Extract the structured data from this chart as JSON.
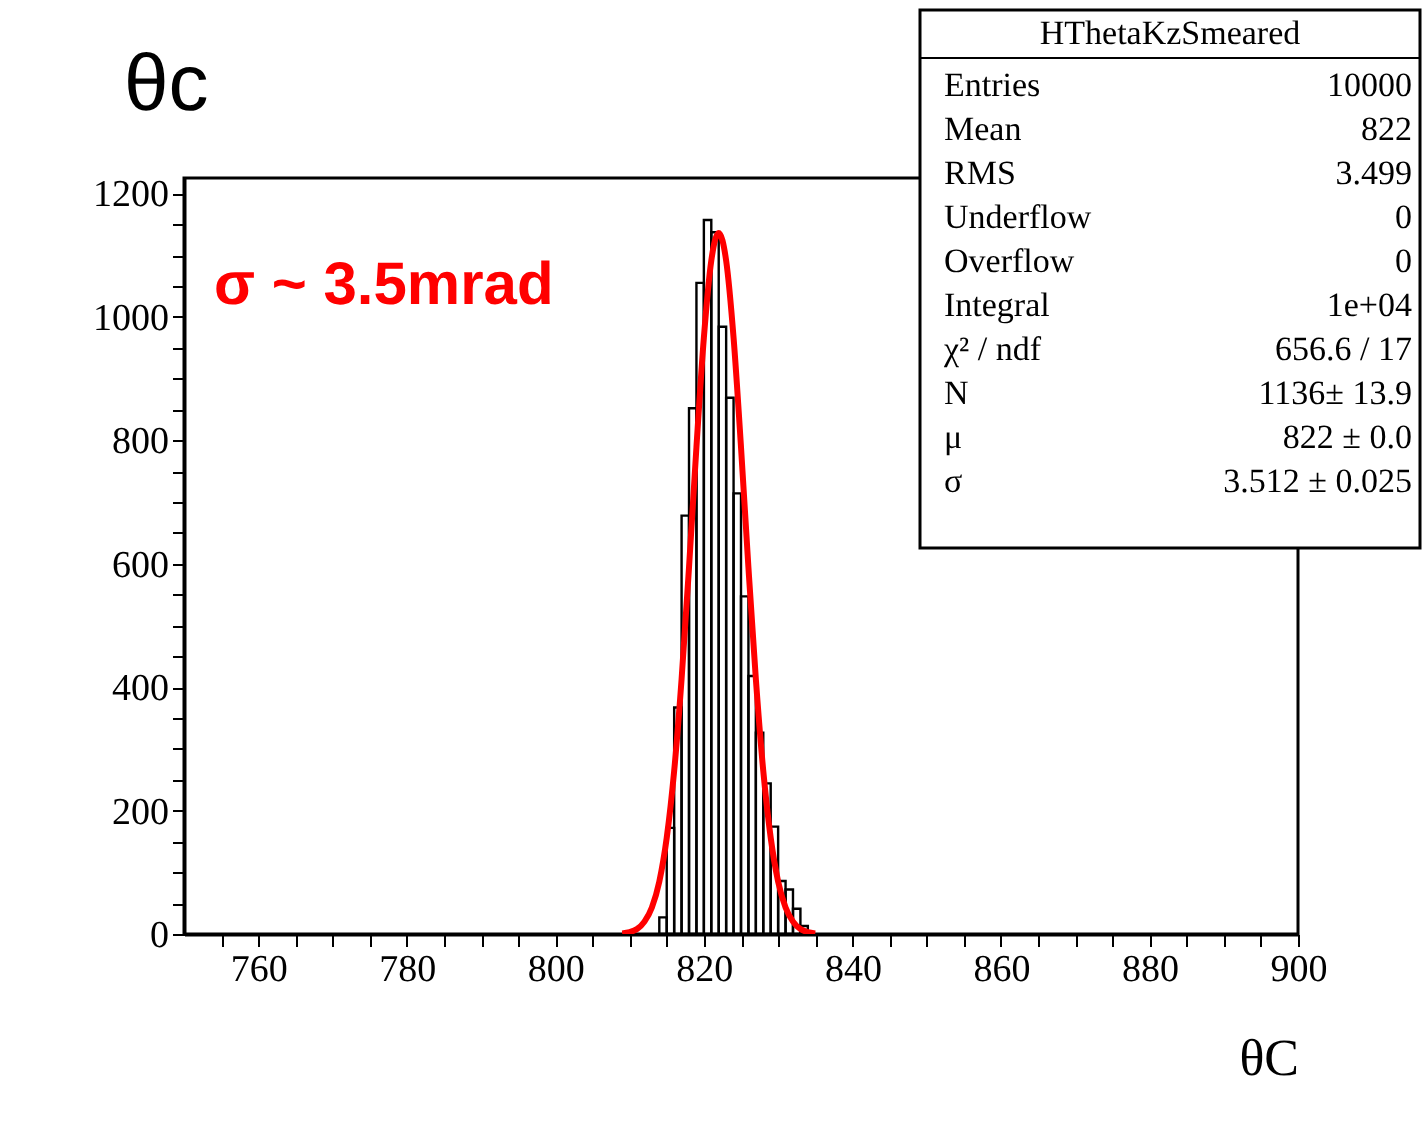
{
  "chart_data": {
    "type": "histogram",
    "title": "θc",
    "xlabel": "θC",
    "bins": [
      814,
      815,
      816,
      817,
      818,
      819,
      820,
      821,
      822,
      823,
      824,
      825,
      826,
      827,
      828,
      829,
      830,
      831,
      832,
      833,
      834
    ],
    "series": [
      {
        "color": "#000000",
        "values": [
          27,
          172,
          367,
          678,
          852,
          1055,
          1157,
          1137,
          984,
          869,
          714,
          547,
          418,
          326,
          244,
          174,
          86,
          72,
          41,
          13
        ]
      },
      {
        "type": "line",
        "color": "#ff0000",
        "x": [
          809,
          810,
          811,
          812,
          813,
          814,
          815,
          816,
          817,
          818,
          819,
          820,
          821,
          822,
          823,
          824,
          825,
          826,
          827,
          828,
          829,
          830,
          831,
          832,
          833,
          834,
          835
        ],
        "values": [
          1,
          3,
          8,
          20,
          43,
          85,
          156,
          264,
          413,
          594,
          789,
          966,
          1091,
          1136,
          1091,
          966,
          789,
          594,
          413,
          264,
          156,
          85,
          43,
          20,
          8,
          3,
          1
        ]
      }
    ],
    "xlim": [
      750,
      900
    ],
    "xticks": [
      {
        "value": 755,
        "label": null
      },
      760,
      {
        "value": 765,
        "label": null
      },
      {
        "value": 770,
        "label": null
      },
      {
        "value": 775,
        "label": null
      },
      780,
      {
        "value": 785,
        "label": null
      },
      {
        "value": 790,
        "label": null
      },
      {
        "value": 795,
        "label": null
      },
      800,
      {
        "value": 805,
        "label": null
      },
      {
        "value": 810,
        "label": null
      },
      {
        "value": 815,
        "label": null
      },
      820,
      {
        "value": 825,
        "label": null
      },
      {
        "value": 830,
        "label": null
      },
      {
        "value": 835,
        "label": null
      },
      840,
      {
        "value": 845,
        "label": null
      },
      {
        "value": 850,
        "label": null
      },
      {
        "value": 855,
        "label": null
      },
      860,
      {
        "value": 865,
        "label": null
      },
      {
        "value": 870,
        "label": null
      },
      {
        "value": 875,
        "label": null
      },
      880,
      {
        "value": 885,
        "label": null
      },
      {
        "value": 890,
        "label": null
      },
      {
        "value": 895,
        "label": null
      },
      900
    ],
    "ylim": [
      0,
      1225
    ],
    "yticks": [
      0,
      {
        "value": 50,
        "label": null
      },
      {
        "value": 100,
        "label": null
      },
      {
        "value": 150,
        "label": null
      },
      200,
      {
        "value": 250,
        "label": null
      },
      {
        "value": 300,
        "label": null
      },
      {
        "value": 350,
        "label": null
      },
      400,
      {
        "value": 450,
        "label": null
      },
      {
        "value": 500,
        "label": null
      },
      {
        "value": 550,
        "label": null
      },
      600,
      {
        "value": 650,
        "label": null
      },
      {
        "value": 700,
        "label": null
      },
      {
        "value": 750,
        "label": null
      },
      800,
      {
        "value": 850,
        "label": null
      },
      {
        "value": 900,
        "label": null
      },
      {
        "value": 950,
        "label": null
      },
      1000,
      {
        "value": 1050,
        "label": null
      },
      {
        "value": 1100,
        "label": null
      },
      {
        "value": 1150,
        "label": null
      },
      1200
    ],
    "grid": false,
    "annotations": [
      "σ ~ 3.5mrad",
      "HThetaKzSmeared",
      "Entries",
      "10000",
      "Mean",
      "822",
      "RMS",
      "3.499",
      "Underflow",
      "0",
      "Overflow",
      "0",
      "Integral",
      "1e+04",
      "χ² / ndf",
      "656.6 / 17",
      "N",
      "1136± 13.9",
      "μ",
      "822 ± 0.0",
      "σ",
      "3.512 ± 0.025"
    ]
  }
}
